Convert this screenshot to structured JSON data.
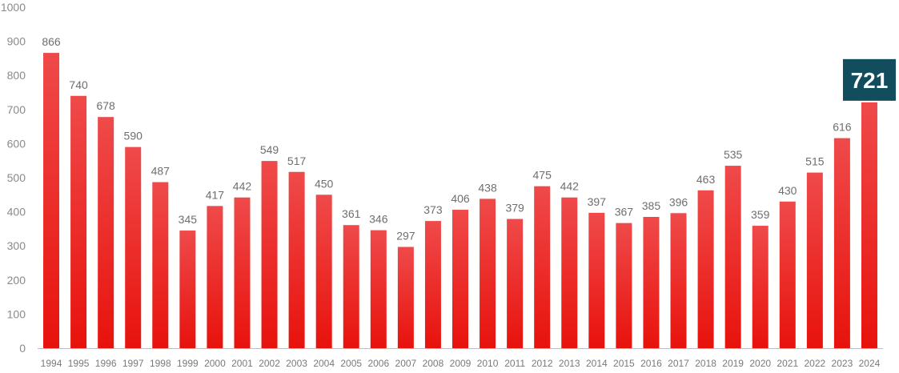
{
  "chart_data": {
    "type": "bar",
    "categories": [
      "1994",
      "1995",
      "1996",
      "1997",
      "1998",
      "1999",
      "2000",
      "2001",
      "2002",
      "2003",
      "2004",
      "2005",
      "2006",
      "2007",
      "2008",
      "2009",
      "2010",
      "2011",
      "2012",
      "2013",
      "2014",
      "2015",
      "2016",
      "2017",
      "2018",
      "2019",
      "2020",
      "2021",
      "2022",
      "2023",
      "2024"
    ],
    "values": [
      866,
      740,
      678,
      590,
      487,
      345,
      417,
      442,
      549,
      517,
      450,
      361,
      346,
      297,
      373,
      406,
      438,
      379,
      475,
      442,
      397,
      367,
      385,
      396,
      463,
      535,
      359,
      430,
      515,
      616,
      721
    ],
    "ylim": [
      0,
      1000
    ],
    "yticks": [
      0,
      100,
      200,
      300,
      400,
      500,
      600,
      700,
      800,
      900,
      1000
    ],
    "highlight": {
      "category": "2024",
      "label": "721"
    },
    "grid": false,
    "title": "",
    "xlabel": "",
    "ylabel": ""
  },
  "colors": {
    "bar_top": "#ef4a4a",
    "bar_bottom": "#e8120c",
    "highlight_box": "#124d5e",
    "axis": "#bdbdbd"
  }
}
